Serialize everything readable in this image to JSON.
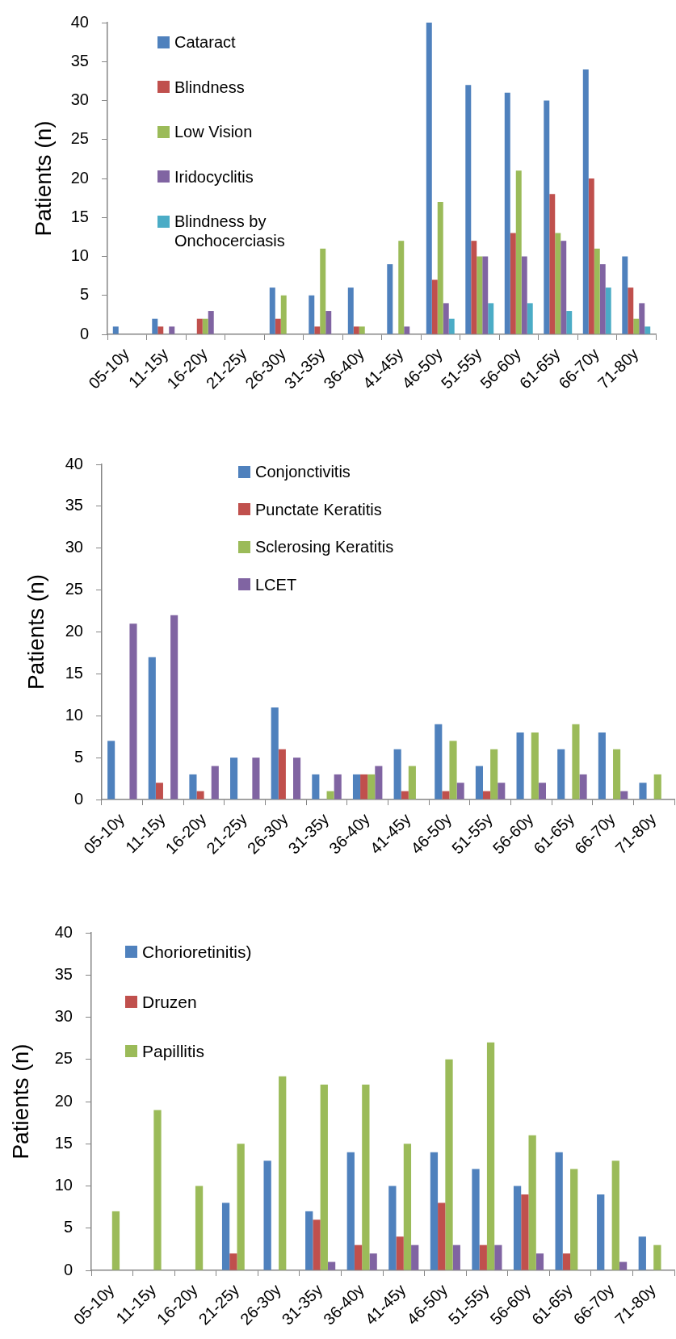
{
  "chart_data": [
    {
      "type": "bar",
      "ylabel": "Patients (n)",
      "categories": [
        "05-10y",
        "11-15y",
        "16-20y",
        "21-25y",
        "26-30y",
        "31-35y",
        "36-40y",
        "41-45y",
        "46-50y",
        "51-55y",
        "56-60y",
        "61-65y",
        "66-70y",
        "71-80y"
      ],
      "series": [
        {
          "name": "Cataract",
          "color": "#4f81bd",
          "values": [
            1,
            2,
            0,
            0,
            6,
            5,
            6,
            9,
            40,
            32,
            31,
            30,
            34,
            10
          ]
        },
        {
          "name": "Blindness",
          "color": "#c0504d",
          "values": [
            0,
            1,
            2,
            0,
            2,
            1,
            1,
            0,
            7,
            12,
            13,
            18,
            20,
            6
          ]
        },
        {
          "name": "Low Vision",
          "color": "#9bbb59",
          "values": [
            0,
            0,
            2,
            0,
            5,
            11,
            1,
            12,
            17,
            10,
            21,
            13,
            11,
            2
          ]
        },
        {
          "name": "Iridocyclitis",
          "color": "#8064a2",
          "values": [
            0,
            1,
            3,
            0,
            0,
            3,
            0,
            1,
            4,
            10,
            10,
            12,
            9,
            4
          ]
        },
        {
          "name": "Blindness by Onchocerciasis",
          "color": "#4bacc6",
          "values": [
            0,
            0,
            0,
            0,
            0,
            0,
            0,
            0,
            2,
            4,
            4,
            3,
            6,
            1
          ]
        }
      ],
      "ylim": [
        0,
        40
      ],
      "yticks": [
        0,
        5,
        10,
        15,
        20,
        25,
        30,
        35,
        40
      ],
      "legend": "top left"
    },
    {
      "type": "bar",
      "ylabel": "Patients (n)",
      "categories": [
        "05-10y",
        "11-15y",
        "16-20y",
        "21-25y",
        "26-30y",
        "31-35y",
        "36-40y",
        "41-45y",
        "46-50y",
        "51-55y",
        "56-60y",
        "61-65y",
        "66-70y",
        "71-80y"
      ],
      "series": [
        {
          "name": "Conjonctivitis",
          "color": "#4f81bd",
          "values": [
            7,
            17,
            3,
            5,
            11,
            3,
            3,
            6,
            9,
            4,
            8,
            6,
            8,
            2
          ]
        },
        {
          "name": "Punctate Keratitis",
          "color": "#c0504d",
          "values": [
            0,
            2,
            1,
            0,
            6,
            0,
            3,
            1,
            1,
            1,
            0,
            0,
            0,
            0
          ]
        },
        {
          "name": "Sclerosing Keratitis",
          "color": "#9bbb59",
          "values": [
            0,
            0,
            0,
            0,
            0,
            1,
            3,
            4,
            7,
            6,
            8,
            9,
            6,
            3
          ]
        },
        {
          "name": "LCET",
          "color": "#8064a2",
          "values": [
            21,
            22,
            4,
            5,
            5,
            3,
            4,
            0,
            2,
            2,
            2,
            3,
            1,
            0
          ]
        }
      ],
      "ylim": [
        0,
        40
      ],
      "yticks": [
        0,
        5,
        10,
        15,
        20,
        25,
        30,
        35,
        40
      ],
      "legend": "top left"
    },
    {
      "type": "bar",
      "ylabel": "Patients (n)",
      "categories": [
        "05-10y",
        "11-15y",
        "16-20y",
        "21-25y",
        "26-30y",
        "31-35y",
        "36-40y",
        "41-45y",
        "46-50y",
        "51-55y",
        "56-60y",
        "61-65y",
        "66-70y",
        "71-80y"
      ],
      "series": [
        {
          "name": "Chorioretinitis)",
          "color": "#4f81bd",
          "values": [
            0,
            0,
            0,
            8,
            13,
            7,
            14,
            10,
            14,
            12,
            10,
            14,
            9,
            4
          ]
        },
        {
          "name": "Druzen",
          "color": "#c0504d",
          "values": [
            0,
            0,
            0,
            2,
            0,
            6,
            3,
            4,
            8,
            3,
            9,
            2,
            0,
            0
          ]
        },
        {
          "name": "Papillitis",
          "color": "#9bbb59",
          "values": [
            7,
            19,
            10,
            15,
            23,
            22,
            22,
            15,
            25,
            27,
            16,
            12,
            13,
            3
          ]
        },
        {
          "color": "#8064a2",
          "values": [
            0,
            0,
            0,
            0,
            0,
            1,
            2,
            3,
            3,
            3,
            2,
            0,
            1,
            0
          ]
        }
      ],
      "ylim": [
        0,
        40
      ],
      "yticks": [
        0,
        5,
        10,
        15,
        20,
        25,
        30,
        35,
        40
      ],
      "legend": "top left"
    }
  ]
}
